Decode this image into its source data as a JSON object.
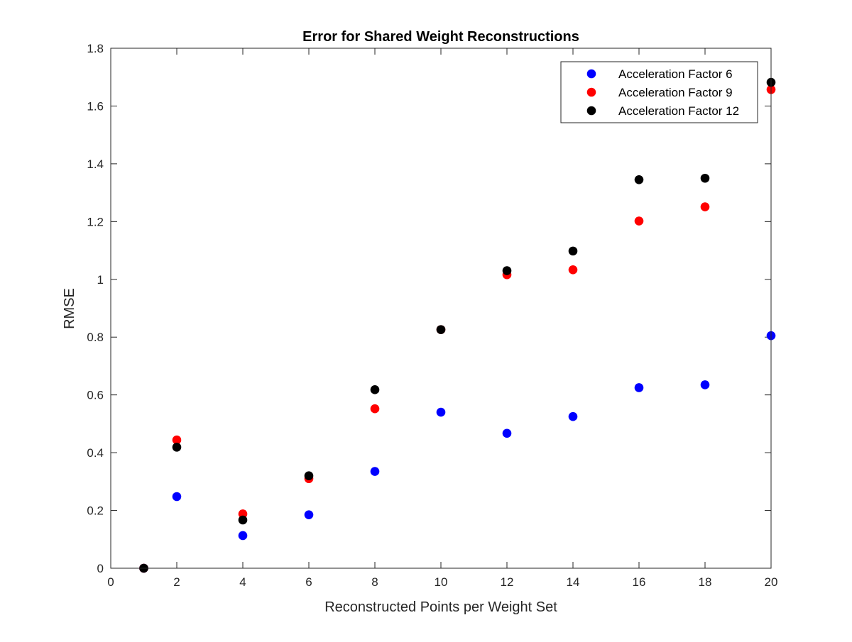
{
  "chart_data": {
    "type": "scatter",
    "title": "Error for Shared Weight Reconstructions",
    "xlabel": "Reconstructed Points per Weight Set",
    "ylabel": "RMSE",
    "xlim": [
      0,
      20
    ],
    "ylim": [
      0,
      1.8
    ],
    "xticks": [
      0,
      2,
      4,
      6,
      8,
      10,
      12,
      14,
      16,
      18,
      20
    ],
    "yticks": [
      0,
      0.2,
      0.4,
      0.6,
      0.8,
      1,
      1.2,
      1.4,
      1.6,
      1.8
    ],
    "x": [
      1,
      2,
      4,
      6,
      8,
      10,
      12,
      14,
      16,
      18,
      20
    ],
    "grid": false,
    "legend_position": "top-right",
    "series": [
      {
        "name": "Acceleration Factor 6",
        "color": "#0000ff",
        "values": [
          0,
          0.248,
          0.113,
          0.185,
          0.335,
          0.54,
          0.467,
          0.525,
          0.625,
          0.635,
          0.805
        ]
      },
      {
        "name": "Acceleration Factor 9",
        "color": "#ff0000",
        "values": [
          0,
          0.444,
          0.188,
          0.31,
          0.552,
          0.826,
          1.016,
          1.033,
          1.202,
          1.251,
          1.657
        ]
      },
      {
        "name": "Acceleration Factor 12",
        "color": "#000000",
        "values": [
          0,
          0.419,
          0.167,
          0.32,
          0.618,
          0.826,
          1.03,
          1.098,
          1.345,
          1.35,
          1.682
        ]
      }
    ]
  }
}
